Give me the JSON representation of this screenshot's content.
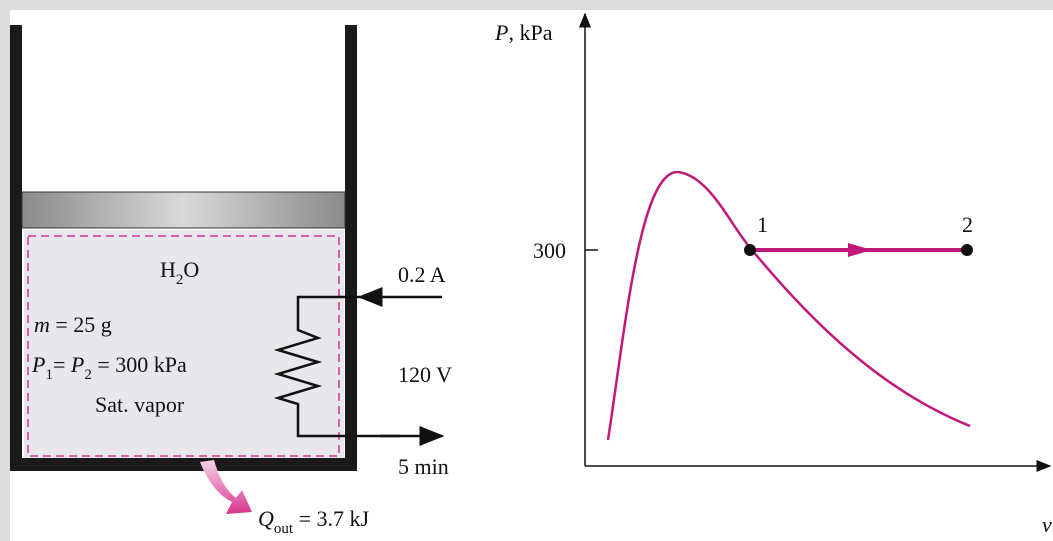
{
  "system": {
    "substance": {
      "base": "H",
      "sub": "2",
      "tail": "O"
    },
    "mass": {
      "symbol": "m",
      "rest": " = 25 g"
    },
    "pressure": {
      "p1": "P",
      "s1": "1",
      "eq": "= ",
      "p2": "P",
      "s2": "2",
      "rest": " = 300 kPa"
    },
    "state": "Sat. vapor"
  },
  "electrical": {
    "current": "0.2 A",
    "voltage": "120 V",
    "time": "5 min"
  },
  "heat": {
    "symbol": "Q",
    "sub": "out",
    "rest": " = 3.7 kJ"
  },
  "pv_diagram": {
    "y_label": "P, kPa",
    "x_label": "v",
    "pressure_tick": "300",
    "states": [
      "1",
      "2"
    ]
  }
}
